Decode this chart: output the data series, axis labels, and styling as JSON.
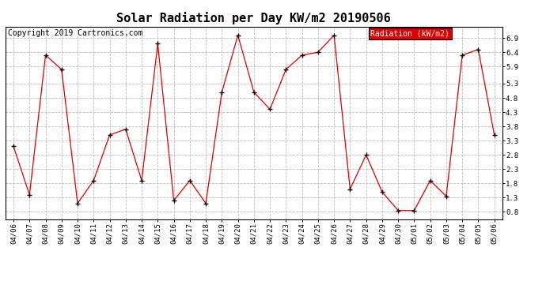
{
  "title": "Solar Radiation per Day KW/m2 20190506",
  "copyright": "Copyright 2019 Cartronics.com",
  "legend_label": "Radiation (kW/m2)",
  "dates": [
    "04/06",
    "04/07",
    "04/08",
    "04/09",
    "04/10",
    "04/11",
    "04/12",
    "04/13",
    "04/14",
    "04/15",
    "04/16",
    "04/17",
    "04/18",
    "04/19",
    "04/20",
    "04/21",
    "04/22",
    "04/23",
    "04/24",
    "04/25",
    "04/26",
    "04/27",
    "04/28",
    "04/29",
    "04/30",
    "05/01",
    "05/02",
    "05/03",
    "05/04",
    "05/05",
    "05/06"
  ],
  "values": [
    3.1,
    1.4,
    6.3,
    5.8,
    1.1,
    1.9,
    3.5,
    3.7,
    1.9,
    6.7,
    1.2,
    1.9,
    1.1,
    5.0,
    7.0,
    5.0,
    4.4,
    5.8,
    6.3,
    6.4,
    7.0,
    1.6,
    2.8,
    1.5,
    0.85,
    0.85,
    1.9,
    1.35,
    6.3,
    6.5,
    3.5
  ],
  "yticks": [
    0.8,
    1.3,
    1.8,
    2.3,
    2.8,
    3.3,
    3.8,
    4.3,
    4.8,
    5.3,
    5.9,
    6.4,
    6.9
  ],
  "ylim": [
    0.55,
    7.3
  ],
  "line_color": "#dd0000",
  "marker_color": "black",
  "marker": "+",
  "grid_color": "#bbbbbb",
  "bg_color": "#ffffff",
  "legend_bg": "#dd0000",
  "legend_text_color": "#ffffff",
  "title_fontsize": 11,
  "tick_fontsize": 6.5,
  "copyright_fontsize": 7
}
